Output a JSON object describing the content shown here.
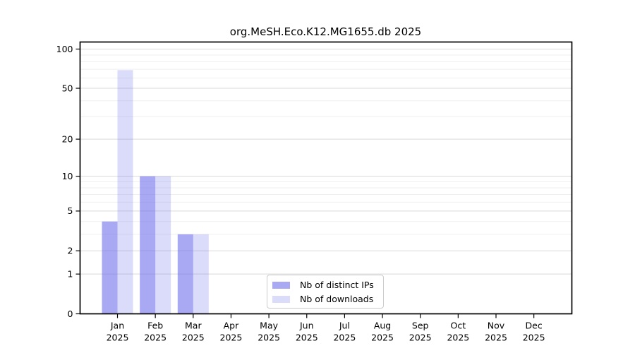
{
  "title": "org.MeSH.Eco.K12.MG1655.db 2025",
  "chart_data": {
    "type": "bar",
    "title": "org.MeSH.Eco.K12.MG1655.db 2025",
    "year_label": "2025",
    "months": [
      "Jan",
      "Feb",
      "Mar",
      "Apr",
      "May",
      "Jun",
      "Jul",
      "Aug",
      "Sep",
      "Oct",
      "Nov",
      "Dec"
    ],
    "series": [
      {
        "name": "Nb of distinct IPs",
        "color": "rgba(110,110,235,0.6)",
        "values": [
          4,
          10,
          3,
          0,
          0,
          0,
          0,
          0,
          0,
          0,
          0,
          0
        ]
      },
      {
        "name": "Nb of downloads",
        "color": "rgba(110,110,235,0.25)",
        "values": [
          69,
          10,
          3,
          0,
          0,
          0,
          0,
          0,
          0,
          0,
          0,
          0
        ]
      }
    ],
    "y_scale": "log1p",
    "ylim": [
      0,
      100
    ],
    "y_ticks": [
      100,
      50,
      20,
      10,
      5,
      2,
      1,
      0
    ],
    "y_minor_ticks": [
      90,
      80,
      70,
      60,
      40,
      30,
      9,
      8,
      7,
      6,
      4,
      3
    ],
    "grid": true,
    "legend_position": "lower center"
  },
  "colors": {
    "grid_major": "#d9d9d9",
    "grid_minor": "#efefef",
    "axis": "#000000",
    "background": "#ffffff"
  }
}
